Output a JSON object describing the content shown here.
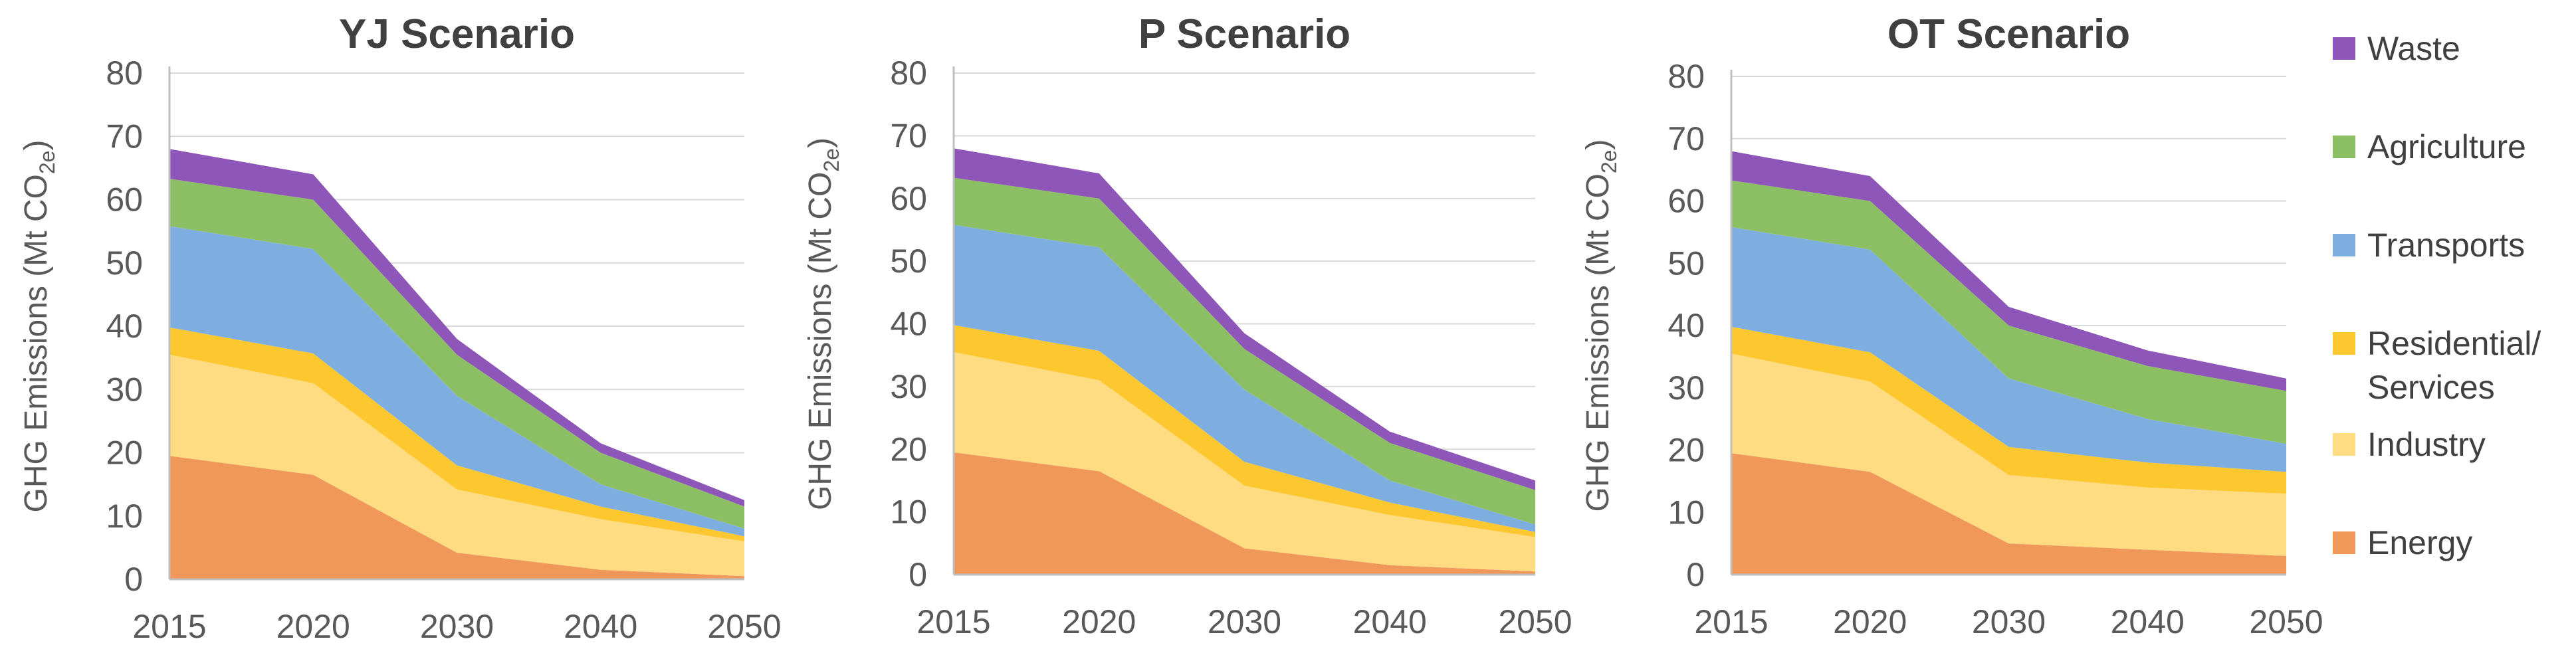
{
  "y_axis_label": "GHG Emissions (Mt CO",
  "y_axis_subscript": "2e",
  "y_axis_close": ")",
  "legend": [
    {
      "key": "waste",
      "label": "Waste"
    },
    {
      "key": "agriculture",
      "label": "Agriculture"
    },
    {
      "key": "transports",
      "label": "Transports"
    },
    {
      "key": "residential",
      "label": "Residential/\nServices"
    },
    {
      "key": "industry",
      "label": "Industry"
    },
    {
      "key": "energy",
      "label": "Energy"
    }
  ],
  "colors": {
    "energy": "#f0975a",
    "industry": "#ffdc82",
    "residential": "#fdc82f",
    "transports": "#7eaee0",
    "agriculture": "#8cbe64",
    "waste": "#8e56b8",
    "axis": "#595959",
    "grid": "#d9d9d9",
    "title": "#404040"
  },
  "chart_data": [
    {
      "type": "area",
      "stacked": true,
      "title": "YJ Scenario",
      "categories": [
        "2015",
        "2020",
        "2030",
        "2040",
        "2050"
      ],
      "ylim": [
        0,
        80
      ],
      "yticks": [
        0,
        10,
        20,
        30,
        40,
        50,
        60,
        70,
        80
      ],
      "series": [
        {
          "key": "energy",
          "name": "Energy",
          "values": [
            19.5,
            16.5,
            4.2,
            1.5,
            0.5
          ]
        },
        {
          "key": "industry",
          "name": "Industry",
          "values": [
            16,
            14.5,
            10,
            8,
            5.5
          ]
        },
        {
          "key": "residential",
          "name": "Residential/Services",
          "values": [
            4.3,
            4.7,
            3.8,
            2,
            0.8
          ]
        },
        {
          "key": "transports",
          "name": "Transports",
          "values": [
            16,
            16.5,
            11,
            3.5,
            1.2
          ]
        },
        {
          "key": "agriculture",
          "name": "Agriculture",
          "values": [
            7.5,
            7.8,
            6.5,
            5,
            3.5
          ]
        },
        {
          "key": "waste",
          "name": "Waste",
          "values": [
            4.7,
            4,
            2.5,
            1.5,
            1
          ]
        }
      ]
    },
    {
      "type": "area",
      "stacked": true,
      "title": "P Scenario",
      "categories": [
        "2015",
        "2020",
        "2030",
        "2040",
        "2050"
      ],
      "ylim": [
        0,
        80
      ],
      "yticks": [
        0,
        10,
        20,
        30,
        40,
        50,
        60,
        70,
        80
      ],
      "series": [
        {
          "key": "energy",
          "name": "Energy",
          "values": [
            19.5,
            16.5,
            4.2,
            1.5,
            0.5
          ]
        },
        {
          "key": "industry",
          "name": "Industry",
          "values": [
            16,
            14.5,
            10,
            8,
            5.5
          ]
        },
        {
          "key": "residential",
          "name": "Residential/Services",
          "values": [
            4.3,
            4.7,
            3.8,
            2,
            0.8
          ]
        },
        {
          "key": "transports",
          "name": "Transports",
          "values": [
            16,
            16.5,
            11.5,
            3.5,
            1.2
          ]
        },
        {
          "key": "agriculture",
          "name": "Agriculture",
          "values": [
            7.5,
            7.8,
            6.5,
            6,
            5.5
          ]
        },
        {
          "key": "waste",
          "name": "Waste",
          "values": [
            4.7,
            4,
            2.5,
            1.8,
            1.5
          ]
        }
      ]
    },
    {
      "type": "area",
      "stacked": true,
      "title": "OT Scenario",
      "categories": [
        "2015",
        "2020",
        "2030",
        "2040",
        "2050"
      ],
      "ylim": [
        0,
        80
      ],
      "yticks": [
        0,
        10,
        20,
        30,
        40,
        50,
        60,
        70,
        80
      ],
      "series": [
        {
          "key": "energy",
          "name": "Energy",
          "values": [
            19.5,
            16.5,
            5,
            4,
            3
          ]
        },
        {
          "key": "industry",
          "name": "Industry",
          "values": [
            16,
            14.5,
            11,
            10,
            10
          ]
        },
        {
          "key": "residential",
          "name": "Residential/Services",
          "values": [
            4.3,
            4.7,
            4.5,
            4,
            3.5
          ]
        },
        {
          "key": "transports",
          "name": "Transports",
          "values": [
            16,
            16.5,
            11,
            7,
            4.5
          ]
        },
        {
          "key": "agriculture",
          "name": "Agriculture",
          "values": [
            7.5,
            7.8,
            8.5,
            8.5,
            8.5
          ]
        },
        {
          "key": "waste",
          "name": "Waste",
          "values": [
            4.7,
            4,
            3,
            2.5,
            2
          ]
        }
      ]
    }
  ]
}
